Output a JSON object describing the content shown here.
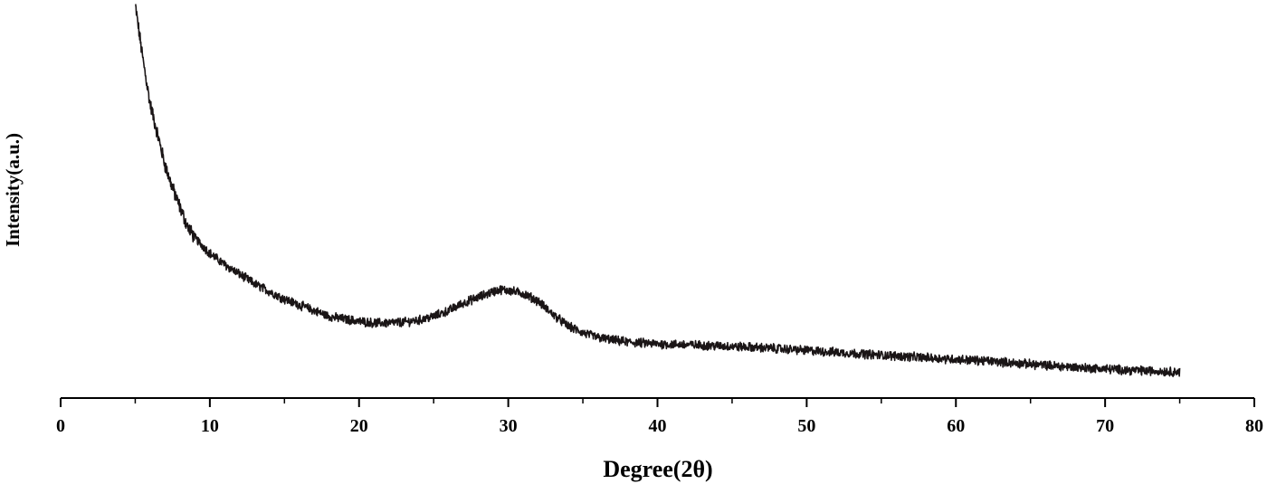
{
  "chart_data": {
    "type": "line",
    "title": "",
    "xlabel": "Degree(2θ)",
    "ylabel": "Intensity(a.u.)",
    "xlim": [
      0,
      80
    ],
    "ylim": [
      0,
      100
    ],
    "x_ticks": [
      0,
      10,
      20,
      30,
      40,
      50,
      60,
      70,
      80
    ],
    "x_tick_labels": [
      "0",
      "10",
      "20",
      "30",
      "40",
      "50",
      "60",
      "70",
      "80"
    ],
    "y_ticks_shown": false,
    "grid": false,
    "legend": "none",
    "line_color": "#1a1516",
    "series": [
      {
        "x": [
          5,
          5.5,
          6,
          6.5,
          7,
          7.5,
          8,
          8.5,
          9,
          10,
          11,
          12,
          13,
          14,
          15,
          16,
          17,
          18,
          19,
          20,
          21,
          22,
          23,
          24,
          25,
          26,
          27,
          28,
          29,
          29.5,
          30,
          31,
          32,
          33,
          34,
          35,
          36,
          37,
          38,
          40,
          42,
          44,
          46,
          48,
          50,
          52,
          55,
          58,
          60,
          62,
          65,
          68,
          70,
          72,
          75
        ],
        "y": [
          100,
          86,
          74,
          66,
          58,
          52,
          47,
          42,
          39,
          35,
          32,
          29.5,
          27,
          25,
          23,
          21.5,
          20,
          18.5,
          17.8,
          17.2,
          16.8,
          16.8,
          17,
          17.5,
          18.5,
          20,
          22,
          23.5,
          25,
          25.5,
          25.3,
          24.5,
          22.5,
          19,
          16,
          14.2,
          13,
          12.3,
          11.8,
          11.3,
          11.1,
          10.8,
          10.5,
          10.1,
          9.6,
          9.1,
          8.4,
          7.7,
          7.3,
          6.9,
          6.0,
          5.2,
          4.8,
          4.4,
          4.0
        ]
      }
    ]
  }
}
